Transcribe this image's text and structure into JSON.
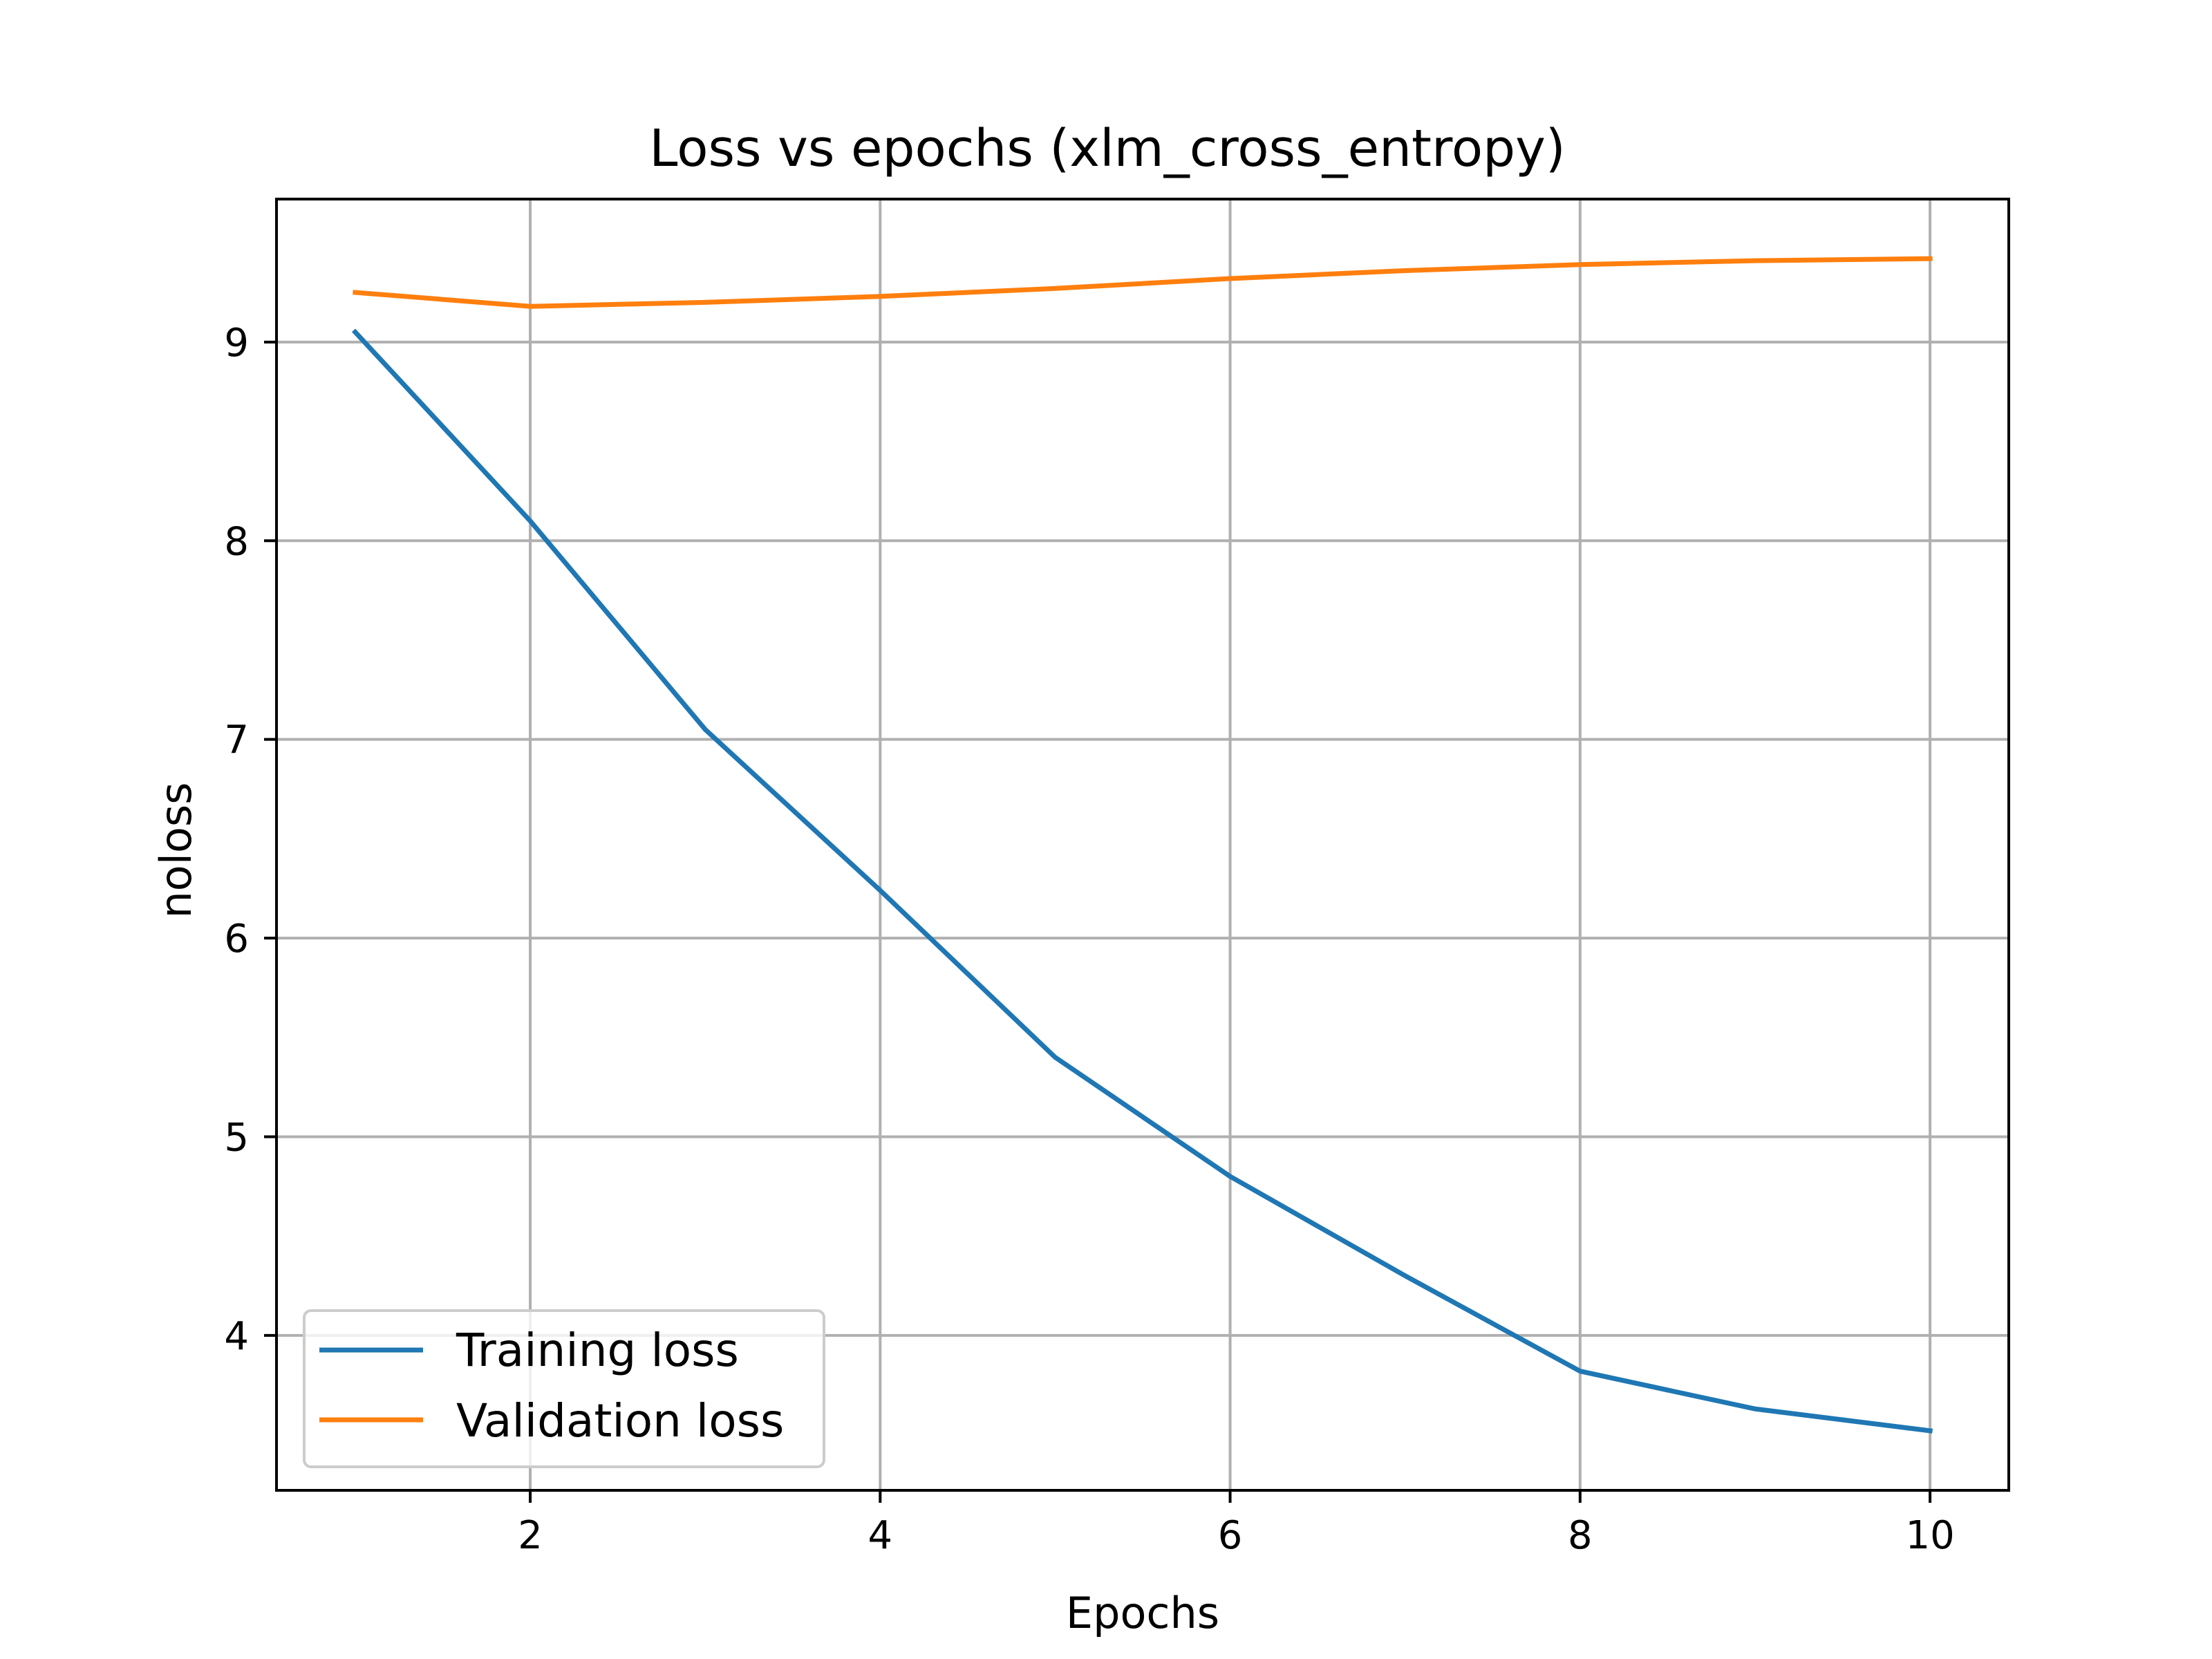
{
  "chart_data": {
    "type": "line",
    "title": "Loss vs epochs (xlm_cross_entropy)",
    "xlabel": "Epochs",
    "ylabel": "noloss",
    "x": [
      1,
      2,
      3,
      4,
      5,
      6,
      7,
      8,
      9,
      10
    ],
    "xlim": [
      0.55,
      10.45
    ],
    "ylim": [
      3.22,
      9.72
    ],
    "xticks": [
      2,
      4,
      6,
      8,
      10
    ],
    "yticks": [
      4,
      5,
      6,
      7,
      8,
      9
    ],
    "grid": true,
    "legend_position": "lower-left",
    "series": [
      {
        "name": "Training loss",
        "color": "#1f77b4",
        "values": [
          9.05,
          8.1,
          7.05,
          6.24,
          5.4,
          4.8,
          4.3,
          3.82,
          3.63,
          3.52
        ]
      },
      {
        "name": "Validation loss",
        "color": "#ff7f0e",
        "values": [
          9.25,
          9.18,
          9.2,
          9.23,
          9.27,
          9.32,
          9.36,
          9.39,
          9.41,
          9.42
        ]
      }
    ]
  }
}
